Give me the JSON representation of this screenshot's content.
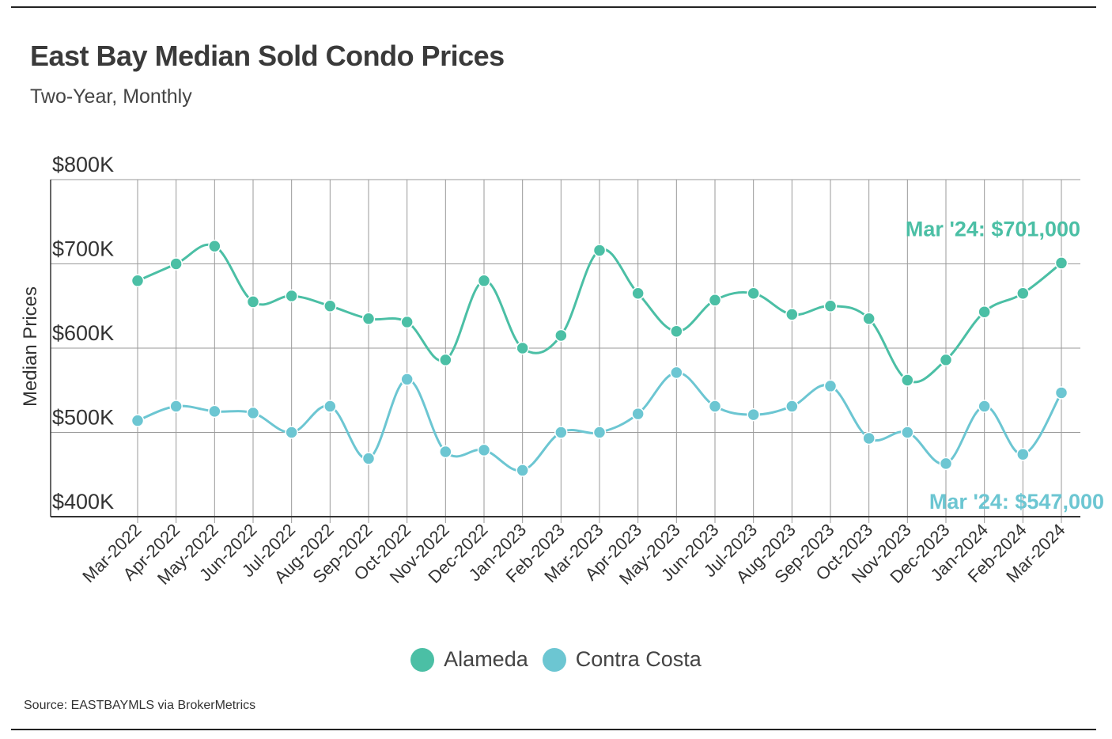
{
  "header": {
    "title": "East Bay Median Sold Condo Prices",
    "subtitle": "Two-Year, Monthly"
  },
  "source": "Source:  EASTBAYMLS via BrokerMetrics",
  "colors": {
    "alameda": "#4bbfa5",
    "contra_costa": "#6cc6d2",
    "grid": "#9a9a9a",
    "axis": "#333333"
  },
  "chart_data": {
    "type": "line",
    "title": "East Bay Median Sold Condo Prices",
    "subtitle": "Two-Year, Monthly",
    "xlabel": "",
    "ylabel": "Median Prices",
    "ylim": [
      400000,
      800000
    ],
    "yticks": [
      400000,
      500000,
      600000,
      700000,
      800000
    ],
    "ytick_labels": [
      "$400K",
      "$500K",
      "$600K",
      "$700K",
      "$800K"
    ],
    "categories": [
      "Mar-2022",
      "Apr-2022",
      "May-2022",
      "Jun-2022",
      "Jul-2022",
      "Aug-2022",
      "Sep-2022",
      "Oct-2022",
      "Nov-2022",
      "Dec-2022",
      "Jan-2023",
      "Feb-2023",
      "Mar-2023",
      "Apr-2023",
      "May-2023",
      "Jun-2023",
      "Jul-2023",
      "Aug-2023",
      "Sep-2023",
      "Oct-2023",
      "Nov-2023",
      "Dec-2023",
      "Jan-2024",
      "Feb-2024",
      "Mar-2024"
    ],
    "series": [
      {
        "name": "Alameda",
        "color_key": "alameda",
        "values": [
          680000,
          700000,
          721000,
          655000,
          662000,
          650000,
          635000,
          631000,
          586000,
          680000,
          600000,
          615000,
          716000,
          665000,
          620000,
          657000,
          665000,
          640000,
          650000,
          635000,
          562000,
          586000,
          643000,
          665000,
          701000
        ]
      },
      {
        "name": "Contra Costa",
        "color_key": "contra_costa",
        "values": [
          514000,
          531000,
          525000,
          523000,
          500000,
          531000,
          469000,
          563000,
          477000,
          479000,
          455000,
          500000,
          500000,
          522000,
          571000,
          531000,
          521000,
          531000,
          555000,
          493000,
          500000,
          463000,
          531000,
          474000,
          547000
        ]
      }
    ],
    "annotations": [
      {
        "series": "Alameda",
        "text": "Mar '24: $701,000"
      },
      {
        "series": "Contra Costa",
        "text": "Mar '24: $547,000"
      }
    ],
    "legend": [
      "Alameda",
      "Contra Costa"
    ],
    "legend_position": "bottom-center",
    "grid": true
  }
}
